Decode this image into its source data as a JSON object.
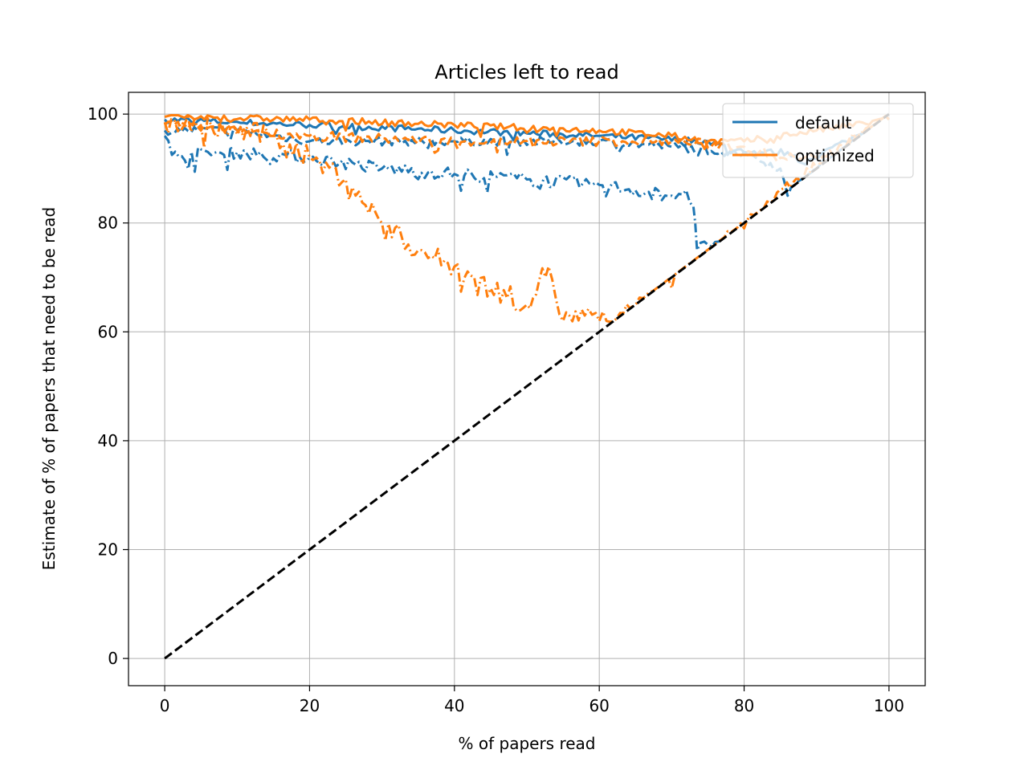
{
  "chart_data": {
    "type": "line",
    "title": "Articles left to read",
    "xlabel": "% of papers read",
    "ylabel": "Estimate of % of papers that need to be read",
    "xlim": [
      -5,
      105
    ],
    "ylim": [
      -5,
      104
    ],
    "xticks": [
      0,
      20,
      40,
      60,
      80,
      100
    ],
    "yticks": [
      0,
      20,
      40,
      60,
      80,
      100
    ],
    "x_tick_labels": [
      "0",
      "20",
      "40",
      "60",
      "80",
      "100"
    ],
    "y_tick_labels": [
      "0",
      "20",
      "40",
      "60",
      "80",
      "100"
    ],
    "grid": true,
    "legend_position": "upper right",
    "legend": [
      {
        "label": "default",
        "color": "#1f77b4"
      },
      {
        "label": "optimized",
        "color": "#ff7f0e"
      }
    ],
    "series": [
      {
        "group": "default",
        "color": "#1f77b4",
        "dash": "solid",
        "noise": 0.6,
        "points": [
          [
            0,
            99
          ],
          [
            20,
            98
          ],
          [
            40,
            97
          ],
          [
            60,
            96
          ],
          [
            75,
            95
          ],
          [
            80,
            93
          ],
          [
            86,
            93
          ],
          [
            88,
            91
          ],
          [
            94,
            95
          ],
          [
            100,
            99
          ]
        ]
      },
      {
        "group": "default",
        "color": "#1f77b4",
        "dash": "dashed",
        "noise": 0.8,
        "points": [
          [
            0,
            97
          ],
          [
            10,
            97
          ],
          [
            20,
            95
          ],
          [
            40,
            95
          ],
          [
            60,
            95
          ],
          [
            70,
            94
          ],
          [
            80,
            93
          ],
          [
            85,
            90
          ],
          [
            86,
            85
          ],
          [
            87,
            87
          ],
          [
            90,
            90
          ],
          [
            100,
            99
          ]
        ]
      },
      {
        "group": "default",
        "color": "#1f77b4",
        "dash": "dashdot",
        "noise": 1.2,
        "points": [
          [
            0,
            96
          ],
          [
            1,
            92.5
          ],
          [
            10,
            93
          ],
          [
            20,
            92
          ],
          [
            30,
            90
          ],
          [
            40,
            89
          ],
          [
            50,
            88
          ],
          [
            60,
            87
          ],
          [
            70,
            85
          ],
          [
            72,
            86
          ],
          [
            73,
            83
          ],
          [
            73.5,
            75
          ],
          [
            75,
            76
          ],
          [
            76,
            76.5
          ],
          [
            77,
            77
          ]
        ]
      },
      {
        "group": "optimized",
        "color": "#ff7f0e",
        "dash": "solid",
        "noise": 0.6,
        "points": [
          [
            0,
            99.5
          ],
          [
            20,
            99
          ],
          [
            40,
            98
          ],
          [
            60,
            97
          ],
          [
            70,
            96
          ],
          [
            75,
            95
          ],
          [
            80,
            95
          ],
          [
            90,
            97
          ],
          [
            100,
            99
          ]
        ]
      },
      {
        "group": "optimized",
        "color": "#ff7f0e",
        "dash": "dashed",
        "noise": 0.9,
        "points": [
          [
            0,
            98
          ],
          [
            10,
            97
          ],
          [
            20,
            96
          ],
          [
            40,
            95
          ],
          [
            60,
            95
          ],
          [
            70,
            95
          ],
          [
            80,
            94
          ],
          [
            85,
            92
          ],
          [
            90,
            92
          ],
          [
            100,
            99
          ]
        ]
      },
      {
        "group": "optimized",
        "color": "#ff7f0e",
        "dash": "dashdot",
        "noise": 2.0,
        "points": [
          [
            0,
            98.5
          ],
          [
            15,
            96
          ],
          [
            20,
            92
          ],
          [
            25,
            88
          ],
          [
            30,
            80
          ],
          [
            35,
            75
          ],
          [
            40,
            72
          ],
          [
            45,
            68
          ],
          [
            50,
            65
          ],
          [
            53,
            72
          ],
          [
            55,
            62
          ],
          [
            58,
            63
          ],
          [
            60,
            62
          ],
          [
            62,
            62
          ],
          [
            70,
            68
          ],
          [
            80,
            79
          ],
          [
            90,
            90
          ],
          [
            100,
            99
          ]
        ]
      },
      {
        "group": "reference",
        "color": "#000000",
        "dash": "dashed",
        "noise": 0,
        "points": [
          [
            0,
            0
          ],
          [
            100,
            100
          ]
        ]
      }
    ]
  }
}
